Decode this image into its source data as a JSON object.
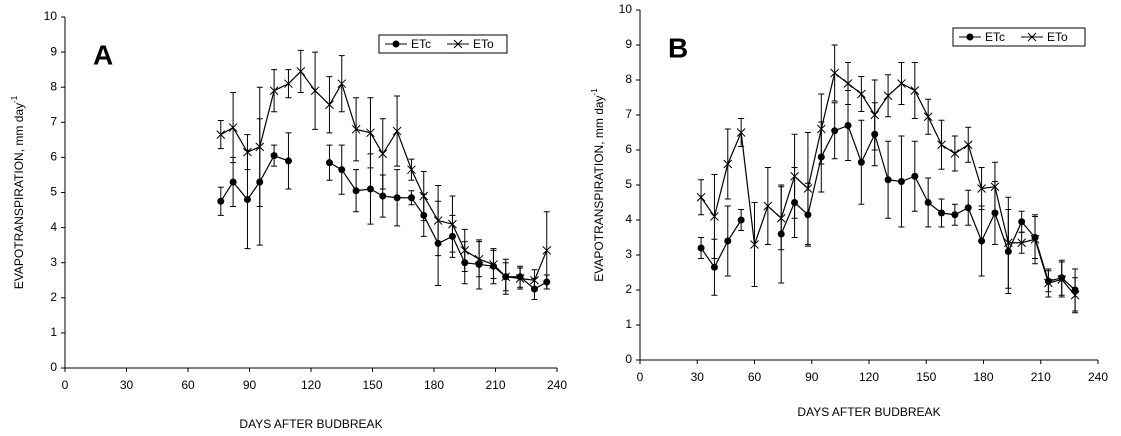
{
  "chart_data": [
    {
      "type": "line",
      "panel_label": "A",
      "x_label": "DAYS AFTER BUDBREAK",
      "y_label": "EVAPOTRANSPIRATION, mm day",
      "y_label_superscript": "-1",
      "x": [
        76,
        82,
        89,
        95,
        102,
        109,
        115,
        122,
        129,
        135,
        142,
        149,
        155,
        162,
        169,
        175,
        182,
        189,
        195,
        202,
        209,
        215,
        222,
        229,
        235
      ],
      "series": [
        {
          "name": "ETc",
          "color": "#000000",
          "marker": "circle",
          "values": [
            4.75,
            5.3,
            4.8,
            5.3,
            6.05,
            5.9,
            null,
            null,
            5.85,
            5.65,
            5.05,
            5.1,
            4.9,
            4.85,
            4.85,
            4.35,
            3.55,
            3.75,
            3.0,
            2.95,
            2.9,
            2.6,
            2.6,
            2.25,
            2.45
          ],
          "errors": [
            0.4,
            0.7,
            1.4,
            1.8,
            0.3,
            0.8,
            null,
            null,
            0.5,
            0.7,
            0.6,
            1.0,
            0.6,
            0.8,
            0.2,
            0.6,
            1.2,
            0.6,
            0.6,
            0.7,
            0.5,
            0.5,
            0.3,
            0.3,
            0.2
          ]
        },
        {
          "name": "ETo",
          "color": "#000000",
          "marker": "x",
          "values": [
            6.65,
            6.85,
            6.15,
            6.3,
            7.9,
            8.1,
            8.45,
            7.9,
            7.5,
            8.1,
            6.8,
            6.7,
            6.1,
            6.75,
            5.65,
            4.9,
            4.2,
            4.1,
            3.35,
            3.1,
            2.95,
            2.6,
            2.55,
            2.5,
            3.35
          ],
          "errors": [
            0.4,
            1.0,
            0.5,
            1.7,
            0.6,
            0.4,
            0.6,
            1.1,
            0.8,
            0.8,
            0.9,
            1.0,
            1.0,
            1.0,
            0.3,
            0.7,
            1.0,
            0.8,
            0.6,
            0.5,
            0.4,
            0.4,
            0.3,
            0.3,
            1.1
          ]
        }
      ],
      "xlim": [
        0,
        240
      ],
      "xticks": [
        0,
        30,
        60,
        90,
        120,
        150,
        180,
        210,
        240
      ],
      "ylim": [
        0,
        10
      ],
      "yticks": [
        0,
        1,
        2,
        3,
        4,
        5,
        6,
        7,
        8,
        9,
        10
      ],
      "grid": false,
      "legend": "upper right"
    },
    {
      "type": "line",
      "panel_label": "B",
      "x_label": "DAYS AFTER BUDBREAK",
      "y_label": "EVAPOTRANSPIRATION, mm day",
      "y_label_superscript": "-1",
      "x": [
        32,
        39,
        46,
        53,
        60,
        67,
        74,
        81,
        88,
        95,
        102,
        109,
        116,
        123,
        130,
        137,
        144,
        151,
        158,
        165,
        172,
        179,
        186,
        193,
        200,
        207,
        214,
        221,
        228
      ],
      "series": [
        {
          "name": "ETc",
          "color": "#000000",
          "marker": "circle",
          "values": [
            3.2,
            2.65,
            3.4,
            4.0,
            null,
            null,
            3.6,
            4.5,
            4.15,
            5.8,
            6.55,
            6.7,
            5.65,
            6.45,
            5.15,
            5.1,
            5.25,
            4.5,
            4.2,
            4.15,
            4.35,
            3.4,
            4.2,
            3.1,
            3.95,
            3.5,
            2.25,
            2.35,
            2.0
          ],
          "errors": [
            0.3,
            0.8,
            1.0,
            0.3,
            null,
            null,
            1.4,
            1.0,
            0.9,
            1.0,
            0.8,
            1.0,
            1.2,
            0.9,
            1.1,
            1.3,
            1.0,
            0.7,
            0.4,
            0.3,
            0.5,
            1.0,
            0.9,
            1.2,
            0.3,
            0.6,
            0.3,
            0.5,
            0.6
          ]
        },
        {
          "name": "ETo",
          "color": "#000000",
          "marker": "x",
          "values": [
            4.65,
            4.1,
            5.6,
            6.5,
            3.3,
            4.4,
            4.05,
            5.25,
            4.9,
            6.6,
            8.2,
            7.9,
            7.6,
            7.0,
            7.55,
            7.9,
            7.7,
            6.95,
            6.15,
            5.9,
            6.15,
            4.9,
            4.95,
            3.35,
            3.35,
            3.45,
            2.2,
            2.3,
            1.85
          ],
          "errors": [
            0.5,
            1.2,
            1.0,
            0.4,
            1.2,
            1.1,
            0.9,
            1.2,
            1.6,
            1.0,
            0.8,
            0.6,
            0.5,
            1.0,
            0.6,
            0.6,
            0.8,
            0.5,
            0.7,
            0.5,
            0.5,
            0.6,
            0.7,
            1.3,
            0.3,
            0.7,
            0.4,
            0.5,
            0.5
          ]
        }
      ],
      "xlim": [
        0,
        240
      ],
      "xticks": [
        0,
        30,
        60,
        90,
        120,
        150,
        180,
        210,
        240
      ],
      "ylim": [
        0,
        10
      ],
      "yticks": [
        0,
        1,
        2,
        3,
        4,
        5,
        6,
        7,
        8,
        9,
        10
      ],
      "grid": false,
      "legend": "upper right"
    }
  ]
}
